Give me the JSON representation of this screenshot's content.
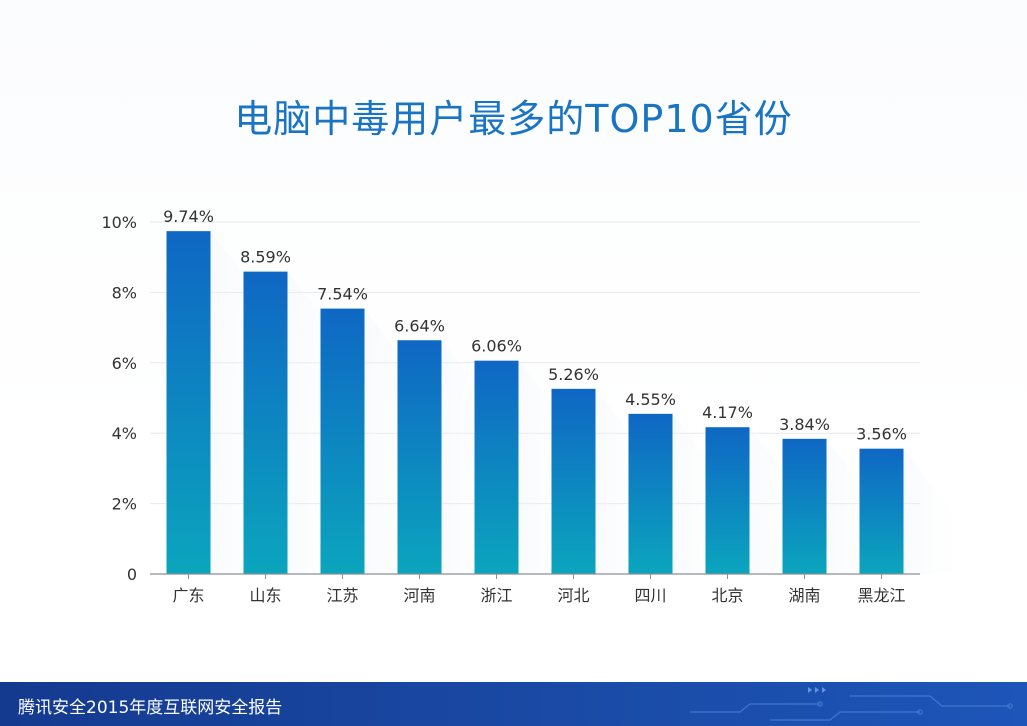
{
  "chart_data": {
    "type": "bar",
    "title": "电脑中毒用户最多的TOP10省份",
    "categories": [
      "广东",
      "山东",
      "江苏",
      "河南",
      "浙江",
      "河北",
      "四川",
      "北京",
      "湖南",
      "黑龙江"
    ],
    "values": [
      9.74,
      8.59,
      7.54,
      6.64,
      6.06,
      5.26,
      4.55,
      4.17,
      3.84,
      3.56
    ],
    "value_labels": [
      "9.74%",
      "8.59%",
      "7.54%",
      "6.64%",
      "6.06%",
      "5.26%",
      "4.55%",
      "4.17%",
      "3.84%",
      "3.56%"
    ],
    "yticks": [
      0,
      2,
      4,
      6,
      8,
      10
    ],
    "ytick_labels": [
      "0",
      "2%",
      "4%",
      "6%",
      "8%",
      "10%"
    ],
    "ylim": [
      0,
      10
    ],
    "xlabel": "",
    "ylabel": "",
    "grid": true,
    "colors": {
      "bar_top": "#0f67c4",
      "bar_bottom": "#0ba5bd",
      "grid": "#e6e9ee",
      "axis": "#8a8f96",
      "text": "#333333",
      "title": "#1a74c4"
    }
  },
  "footer": {
    "text": "腾讯安全2015年度互联网安全报告"
  }
}
